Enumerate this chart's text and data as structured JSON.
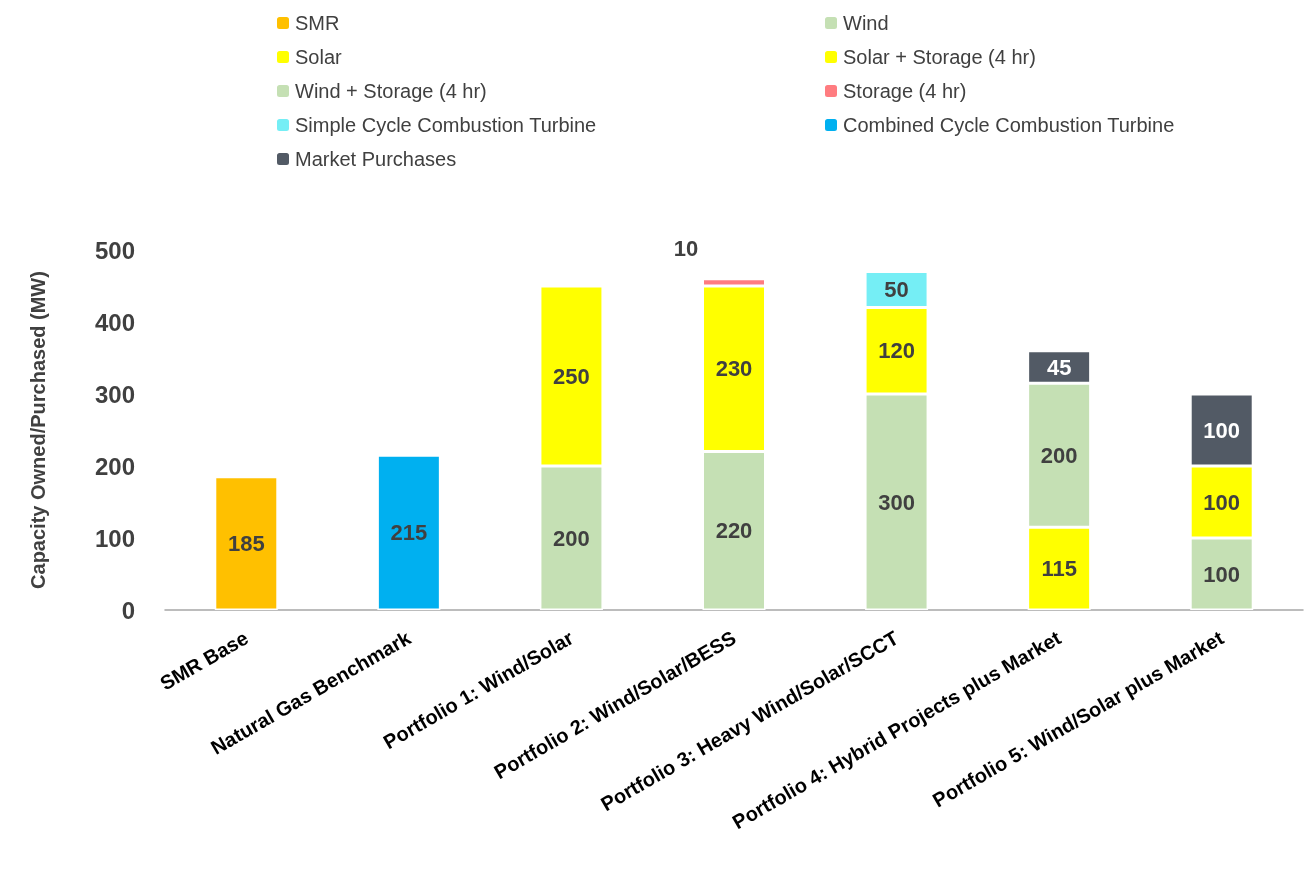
{
  "chart_data": {
    "type": "bar",
    "stacked": true,
    "ylabel": "Capacity Owned/Purchased (MW)",
    "categories": [
      "SMR Base",
      "Natural Gas Benchmark",
      "Portfolio 1: Wind/Solar",
      "Portfolio 2: Wind/Solar/BESS",
      "Portfolio 3: Heavy Wind/Solar/SCCT",
      "Portfolio 4: Hybrid Projects plus Market",
      "Portfolio 5: Wind/Solar plus Market"
    ],
    "series": [
      {
        "name": "SMR",
        "color": "#ffc000",
        "values": [
          185,
          null,
          null,
          null,
          null,
          null,
          null
        ]
      },
      {
        "name": "Wind",
        "color": "#c5e0b4",
        "values": [
          null,
          null,
          200,
          220,
          300,
          null,
          100
        ]
      },
      {
        "name": "Solar",
        "color": "#ffff00",
        "values": [
          null,
          null,
          250,
          230,
          120,
          null,
          100
        ]
      },
      {
        "name": "Solar + Storage (4 hr)",
        "color": "#ffff00",
        "values": [
          null,
          null,
          null,
          null,
          null,
          115,
          null
        ]
      },
      {
        "name": "Wind + Storage (4 hr)",
        "color": "#c5e0b4",
        "values": [
          null,
          null,
          null,
          null,
          null,
          200,
          null
        ]
      },
      {
        "name": "Storage (4 hr)",
        "color": "#ff7c80",
        "values": [
          null,
          null,
          null,
          10,
          null,
          null,
          null
        ]
      },
      {
        "name": "Simple Cycle Combustion Turbine",
        "color": "#75eef5",
        "values": [
          null,
          null,
          null,
          null,
          50,
          null,
          null
        ]
      },
      {
        "name": "Combined Cycle Combustion Turbine",
        "color": "#00b0f0",
        "values": [
          null,
          215,
          null,
          null,
          null,
          null,
          null
        ]
      },
      {
        "name": "Market Purchases",
        "color": "#525a65",
        "values": [
          null,
          null,
          null,
          null,
          null,
          45,
          100
        ]
      }
    ],
    "ylim": [
      0,
      500
    ],
    "yticks": [
      0,
      100,
      200,
      300,
      400,
      500
    ],
    "grid": false,
    "legend": "top",
    "data_labels": true
  }
}
